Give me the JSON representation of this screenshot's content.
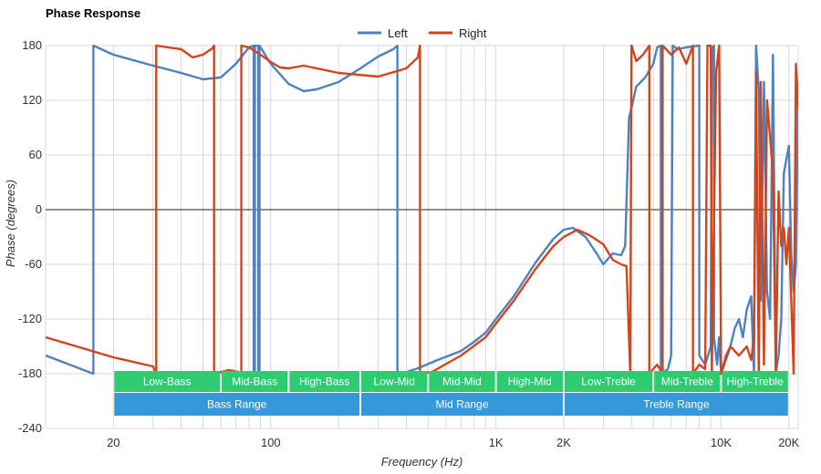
{
  "chart_data": {
    "type": "line",
    "title": "Phase Response",
    "xlabel": "Frequency (Hz)",
    "ylabel": "Phase (degrees)",
    "xscale": "log",
    "xlim": [
      10,
      22000
    ],
    "ylim": [
      -240,
      180
    ],
    "yticks": [
      180,
      120,
      60,
      0,
      -60,
      -120,
      -180,
      -240
    ],
    "xticks": [
      {
        "value": 20,
        "label": "20"
      },
      {
        "value": 100,
        "label": "100"
      },
      {
        "value": 1000,
        "label": "1K"
      },
      {
        "value": 2000,
        "label": "2K"
      },
      {
        "value": 10000,
        "label": "10K"
      },
      {
        "value": 20000,
        "label": "20K"
      }
    ],
    "legend": {
      "position": "top-center"
    },
    "series": [
      {
        "name": "Left",
        "color": "#4f81bd",
        "points": [
          [
            10,
            -160
          ],
          [
            16.3,
            -180
          ],
          [
            16.3,
            180
          ],
          [
            20,
            170
          ],
          [
            30,
            158
          ],
          [
            40,
            150
          ],
          [
            50,
            143
          ],
          [
            60,
            145
          ],
          [
            70,
            160
          ],
          [
            80,
            178
          ],
          [
            84,
            180
          ],
          [
            84,
            -180
          ],
          [
            85,
            -180
          ],
          [
            85,
            180
          ],
          [
            88,
            180
          ],
          [
            88,
            -180
          ],
          [
            89,
            -180
          ],
          [
            89,
            180
          ],
          [
            100,
            160
          ],
          [
            120,
            138
          ],
          [
            140,
            130
          ],
          [
            160,
            132
          ],
          [
            200,
            140
          ],
          [
            250,
            155
          ],
          [
            300,
            168
          ],
          [
            350,
            176
          ],
          [
            365,
            180
          ],
          [
            365,
            -180
          ],
          [
            380,
            -180
          ],
          [
            450,
            -174
          ],
          [
            550,
            -165
          ],
          [
            700,
            -155
          ],
          [
            800,
            -145
          ],
          [
            900,
            -135
          ],
          [
            1000,
            -120
          ],
          [
            1200,
            -95
          ],
          [
            1500,
            -58
          ],
          [
            1800,
            -32
          ],
          [
            2000,
            -22
          ],
          [
            2200,
            -20
          ],
          [
            2500,
            -30
          ],
          [
            2800,
            -48
          ],
          [
            3000,
            -60
          ],
          [
            3300,
            -48
          ],
          [
            3600,
            -50
          ],
          [
            3750,
            -40
          ],
          [
            3900,
            100
          ],
          [
            4200,
            135
          ],
          [
            4600,
            145
          ],
          [
            5000,
            160
          ],
          [
            5200,
            178
          ],
          [
            5400,
            180
          ],
          [
            5400,
            -180
          ],
          [
            5800,
            -175
          ],
          [
            6000,
            -160
          ],
          [
            6100,
            180
          ],
          [
            6400,
            176
          ],
          [
            7000,
            178
          ],
          [
            8000,
            180
          ],
          [
            8000,
            -160
          ],
          [
            8500,
            -170
          ],
          [
            9000,
            -150
          ],
          [
            9100,
            176
          ],
          [
            9300,
            180
          ],
          [
            9300,
            -140
          ],
          [
            9600,
            -170
          ],
          [
            9800,
            -140
          ],
          [
            10000,
            -180
          ],
          [
            10500,
            -160
          ],
          [
            11000,
            -150
          ],
          [
            11500,
            -130
          ],
          [
            12000,
            -120
          ],
          [
            12500,
            -140
          ],
          [
            13000,
            -110
          ],
          [
            13600,
            -95
          ],
          [
            14000,
            -180
          ],
          [
            14300,
            180
          ],
          [
            14700,
            130
          ],
          [
            15000,
            -100
          ],
          [
            15500,
            140
          ],
          [
            16000,
            -90
          ],
          [
            16500,
            -120
          ],
          [
            17000,
            170
          ],
          [
            17500,
            -180
          ],
          [
            18000,
            -160
          ],
          [
            18500,
            -120
          ],
          [
            19000,
            40
          ],
          [
            20000,
            70
          ],
          [
            20500,
            -50
          ],
          [
            21000,
            -90
          ],
          [
            21500,
            -60
          ],
          [
            22000,
            140
          ]
        ]
      },
      {
        "name": "Right",
        "color": "#d0451b",
        "points": [
          [
            10,
            -140
          ],
          [
            20,
            -162
          ],
          [
            30,
            -172
          ],
          [
            31,
            -180
          ],
          [
            31,
            180
          ],
          [
            35,
            178
          ],
          [
            40,
            176
          ],
          [
            45,
            167
          ],
          [
            50,
            170
          ],
          [
            55,
            177
          ],
          [
            56,
            180
          ],
          [
            56,
            -180
          ],
          [
            65,
            -176
          ],
          [
            72,
            -178
          ],
          [
            74,
            -180
          ],
          [
            74,
            180
          ],
          [
            80,
            178
          ],
          [
            90,
            170
          ],
          [
            100,
            162
          ],
          [
            110,
            156
          ],
          [
            120,
            155
          ],
          [
            140,
            158
          ],
          [
            160,
            155
          ],
          [
            200,
            150
          ],
          [
            300,
            146
          ],
          [
            400,
            155
          ],
          [
            450,
            167
          ],
          [
            460,
            180
          ],
          [
            460,
            -180
          ],
          [
            520,
            -178
          ],
          [
            700,
            -160
          ],
          [
            900,
            -140
          ],
          [
            1000,
            -125
          ],
          [
            1200,
            -100
          ],
          [
            1500,
            -65
          ],
          [
            1800,
            -40
          ],
          [
            2000,
            -30
          ],
          [
            2300,
            -22
          ],
          [
            2600,
            -28
          ],
          [
            3000,
            -38
          ],
          [
            3300,
            -55
          ],
          [
            3600,
            -60
          ],
          [
            3800,
            -62
          ],
          [
            3950,
            -180
          ],
          [
            4000,
            180
          ],
          [
            4200,
            163
          ],
          [
            4500,
            170
          ],
          [
            4800,
            180
          ],
          [
            4800,
            -180
          ],
          [
            5200,
            -170
          ],
          [
            5500,
            -180
          ],
          [
            5500,
            180
          ],
          [
            6000,
            170
          ],
          [
            6500,
            178
          ],
          [
            7000,
            160
          ],
          [
            7500,
            180
          ],
          [
            7500,
            -180
          ],
          [
            8000,
            -170
          ],
          [
            8500,
            -175
          ],
          [
            8700,
            180
          ],
          [
            9000,
            180
          ],
          [
            9100,
            -180
          ],
          [
            9500,
            150
          ],
          [
            9800,
            180
          ],
          [
            10000,
            -180
          ],
          [
            11000,
            -150
          ],
          [
            12000,
            -160
          ],
          [
            13000,
            -150
          ],
          [
            13600,
            -165
          ],
          [
            14000,
            -140
          ],
          [
            14300,
            150
          ],
          [
            14700,
            -180
          ],
          [
            15000,
            140
          ],
          [
            15500,
            -170
          ],
          [
            16000,
            120
          ],
          [
            17000,
            40
          ],
          [
            17500,
            -180
          ],
          [
            18000,
            20
          ],
          [
            18500,
            -40
          ],
          [
            19000,
            -20
          ],
          [
            19500,
            -60
          ],
          [
            20000,
            -20
          ],
          [
            20500,
            -100
          ],
          [
            21000,
            -180
          ],
          [
            21500,
            160
          ],
          [
            22000,
            110
          ]
        ]
      }
    ],
    "bands": [
      {
        "label": "Low-Bass",
        "from": 20,
        "to": 60,
        "row": 1
      },
      {
        "label": "Mid-Bass",
        "from": 60,
        "to": 120,
        "row": 1
      },
      {
        "label": "High-Bass",
        "from": 120,
        "to": 250,
        "row": 1
      },
      {
        "label": "Low-Mid",
        "from": 250,
        "to": 500,
        "row": 1
      },
      {
        "label": "Mid-Mid",
        "from": 500,
        "to": 1000,
        "row": 1
      },
      {
        "label": "High-Mid",
        "from": 1000,
        "to": 2000,
        "row": 1
      },
      {
        "label": "Low-Treble",
        "from": 2000,
        "to": 5000,
        "row": 1
      },
      {
        "label": "Mid-Treble",
        "from": 5000,
        "to": 10000,
        "row": 1
      },
      {
        "label": "High-Treble",
        "from": 10000,
        "to": 20000,
        "row": 1
      },
      {
        "label": "Bass Range",
        "from": 20,
        "to": 250,
        "row": 2
      },
      {
        "label": "Mid Range",
        "from": 250,
        "to": 2000,
        "row": 2
      },
      {
        "label": "Treble Range",
        "from": 2000,
        "to": 20000,
        "row": 2
      }
    ],
    "band_colors": {
      "row1": "#2ecc71",
      "row2": "#3498db"
    }
  }
}
